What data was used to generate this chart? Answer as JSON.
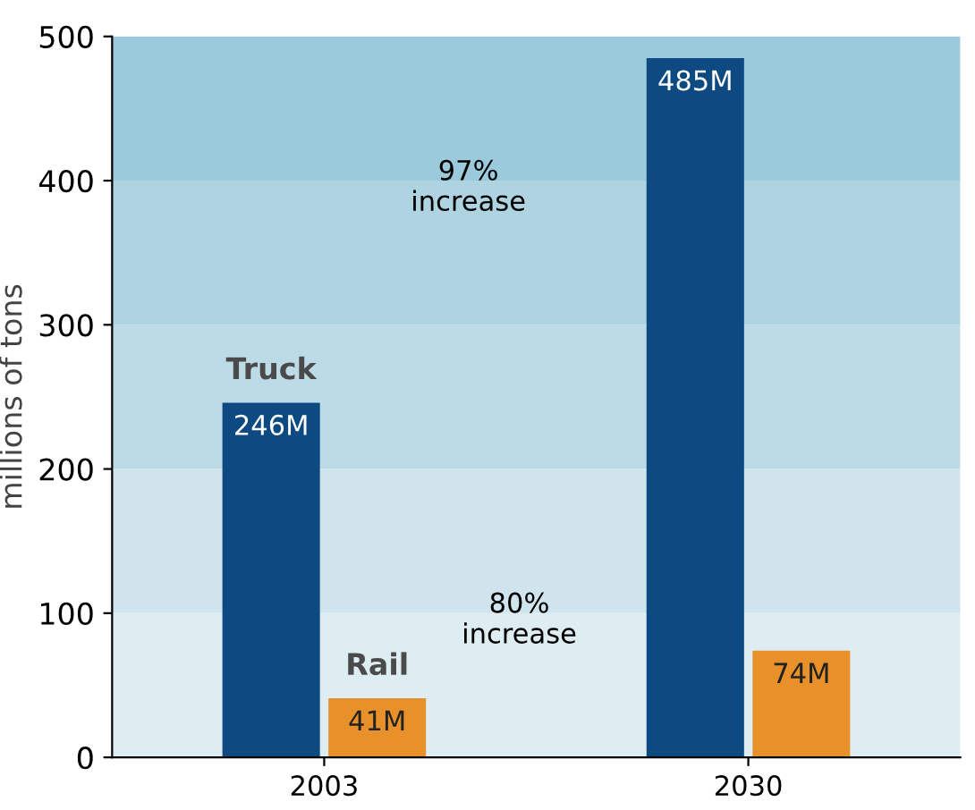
{
  "chart_data": {
    "type": "bar",
    "ylabel": "millions of tons",
    "categories": [
      "2003",
      "2030"
    ],
    "series": [
      {
        "name": "Truck",
        "color": "#0e4a82",
        "values": [
          246,
          485
        ],
        "value_labels": [
          "246M",
          "485M"
        ]
      },
      {
        "name": "Rail",
        "color": "#e8912a",
        "values": [
          41,
          74
        ],
        "value_labels": [
          "41M",
          "74M"
        ]
      }
    ],
    "ylim": [
      0,
      500
    ],
    "yticks": [
      0,
      100,
      200,
      300,
      400,
      500
    ],
    "bands": [
      {
        "axis": "y",
        "from": 0,
        "to": 100,
        "color": "#deedf2"
      },
      {
        "axis": "y",
        "from": 100,
        "to": 200,
        "color": "#cfe4ec"
      },
      {
        "axis": "y",
        "from": 200,
        "to": 300,
        "color": "#bddbe6"
      },
      {
        "axis": "y",
        "from": 300,
        "to": 400,
        "color": "#aed3e1"
      },
      {
        "axis": "y",
        "from": 400,
        "to": 500,
        "color": "#9acadb"
      }
    ],
    "annotations": [
      "97%\nincrease",
      "80%\nincrease"
    ],
    "legend": false,
    "grid": false
  }
}
